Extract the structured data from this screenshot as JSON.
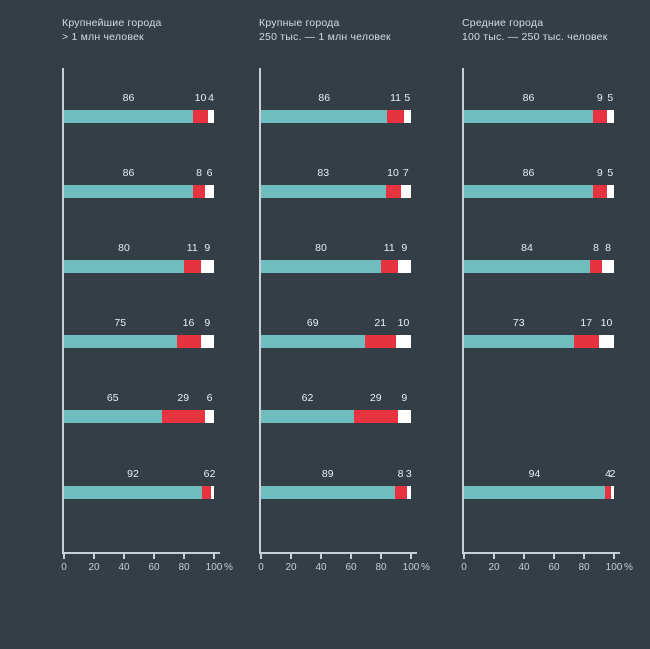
{
  "page": {
    "background": "#333e47"
  },
  "colors": {
    "segment_primary": "#6fbdbe",
    "segment_accent": "#e6333f",
    "segment_white": "#ffffff",
    "axis": "#c8ced3",
    "header_text": "#d5dbdf",
    "value_text": "#e9edef",
    "tick_text": "#c6ccd1"
  },
  "axis": {
    "tick_labels": [
      "0",
      "20",
      "40",
      "60",
      "80",
      "100"
    ],
    "tick_values": [
      0,
      20,
      40,
      60,
      80,
      100
    ],
    "unit_label": "%",
    "max": 100,
    "grid": false,
    "legend": "none"
  },
  "chart_data": [
    {
      "type": "bar",
      "orientation": "horizontal-stacked",
      "title": "Крупнейшие города",
      "subtitle": "> 1 млн человек",
      "xlim": [
        0,
        100
      ],
      "rows": [
        [
          86,
          10,
          4
        ],
        [
          86,
          8,
          6
        ],
        [
          80,
          11,
          9
        ],
        [
          75,
          16,
          9
        ],
        [
          65,
          29,
          6
        ],
        [
          92,
          6,
          2
        ]
      ]
    },
    {
      "type": "bar",
      "orientation": "horizontal-stacked",
      "title": "Крупные города",
      "subtitle": "250 тыс. — 1 млн человек",
      "xlim": [
        0,
        100
      ],
      "rows": [
        [
          86,
          11,
          5
        ],
        [
          83,
          10,
          7
        ],
        [
          80,
          11,
          9
        ],
        [
          69,
          21,
          10
        ],
        [
          62,
          29,
          9
        ],
        [
          89,
          8,
          3
        ]
      ]
    },
    {
      "type": "bar",
      "orientation": "horizontal-stacked",
      "title": "Средние города",
      "subtitle": "100 тыс. — 250 тыс. человек",
      "xlim": [
        0,
        100
      ],
      "rows": [
        [
          86,
          9,
          5
        ],
        [
          86,
          9,
          5
        ],
        [
          84,
          8,
          8
        ],
        [
          73,
          17,
          10
        ],
        null,
        [
          94,
          4,
          2
        ]
      ]
    }
  ]
}
